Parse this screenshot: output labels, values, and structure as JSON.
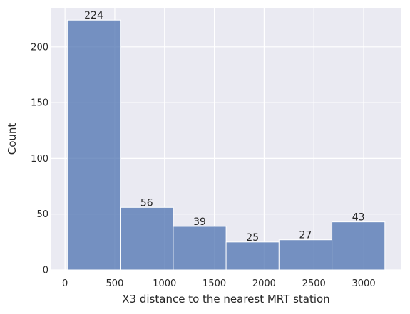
{
  "chart_data": {
    "type": "bar",
    "subtype": "histogram",
    "bins": [
      {
        "start": 23.38,
        "end": 555.0,
        "count": 224
      },
      {
        "start": 555.0,
        "end": 1086.6,
        "count": 56
      },
      {
        "start": 1086.6,
        "end": 1618.2,
        "count": 39
      },
      {
        "start": 1618.2,
        "end": 2149.8,
        "count": 25
      },
      {
        "start": 2149.8,
        "end": 2681.4,
        "count": 27
      },
      {
        "start": 2681.4,
        "end": 3213.0,
        "count": 43
      }
    ],
    "title": "",
    "xlabel": "X3 distance to the nearest MRT station",
    "ylabel": "Count",
    "xlim": [
      -137,
      3372
    ],
    "ylim": [
      0,
      235
    ],
    "xticks": [
      0,
      500,
      1000,
      1500,
      2000,
      2500,
      3000
    ],
    "yticks": [
      0,
      50,
      100,
      150,
      200
    ],
    "bar_labels": [
      "224",
      "56",
      "39",
      "25",
      "27",
      "43"
    ],
    "grid": true,
    "legend": "none",
    "colors": {
      "bar_fill": "#4c72b0",
      "bar_edge": "#ffffff",
      "plot_background": "#eaeaf2",
      "grid": "#ffffff",
      "text": "#262626"
    }
  }
}
